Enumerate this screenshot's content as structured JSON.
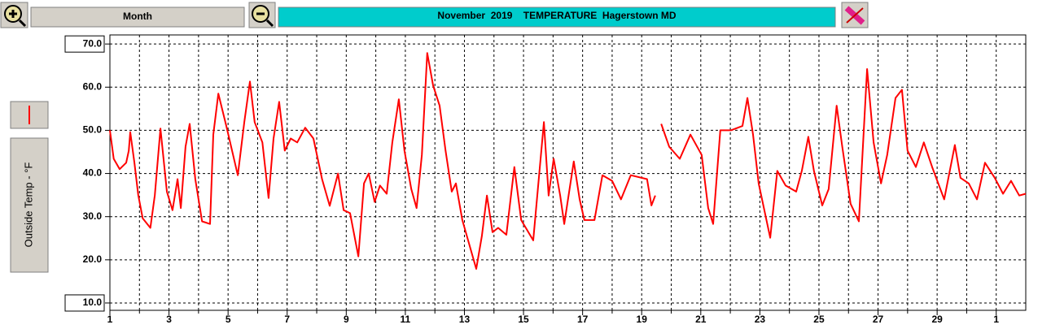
{
  "toolbar": {
    "period": "Month"
  },
  "chart_data": {
    "type": "line",
    "title": "November  2019    TEMPERATURE  Hagerstown MD",
    "x": [
      0,
      0.13,
      0.33,
      0.55,
      0.64,
      0.69,
      0.83,
      0.96,
      1.11,
      1.37,
      1.52,
      1.71,
      1.93,
      2.12,
      2.29,
      2.4,
      2.56,
      2.7,
      2.89,
      3.12,
      3.39,
      3.5,
      3.67,
      3.94,
      4.33,
      4.55,
      4.74,
      4.9,
      5.16,
      5.37,
      5.54,
      5.73,
      5.92,
      6.12,
      6.34,
      6.61,
      6.89,
      7.18,
      7.44,
      7.72,
      7.91,
      8.13,
      8.41,
      8.6,
      8.76,
      8.96,
      9.14,
      9.37,
      9.56,
      9.78,
      9.97,
      10.2,
      10.38,
      10.56,
      10.74,
      10.94,
      11.16,
      11.36,
      11.57,
      11.71,
      11.93,
      12.4,
      12.59,
      12.76,
      12.95,
      13.14,
      13.42,
      13.69,
      13.92,
      14.33,
      14.69,
      14.85,
      15.02,
      15.24,
      15.38,
      15.7,
      15.9,
      16.06,
      16.4,
      16.67,
      17.0,
      17.3,
      17.63,
      18.18,
      18.33,
      18.46,
      18.55,
      18.66,
      18.93,
      19.29,
      19.65,
      20.03,
      20.25,
      20.42,
      20.66,
      21.02,
      21.41,
      21.58,
      21.77,
      21.96,
      22.35,
      22.59,
      22.87,
      23.23,
      23.42,
      23.64,
      23.83,
      24.11,
      24.33,
      24.6,
      24.79,
      25.07,
      25.35,
      25.63,
      25.85,
      26.1,
      26.31,
      26.59,
      26.81,
      27.0,
      27.28,
      27.55,
      27.83,
      28.24,
      28.6,
      28.79,
      29.07,
      29.35,
      29.62,
      29.95,
      30.23,
      30.5,
      30.78,
      31
    ],
    "series": [
      {
        "name": "Outside Temp - °F",
        "color": "#ff0000",
        "values": [
          50,
          43.4,
          41,
          42.5,
          45.3,
          49.6,
          42.5,
          35,
          29.6,
          27.4,
          35,
          50.4,
          35.8,
          31.5,
          38.7,
          32,
          46.2,
          51.5,
          38.7,
          28.9,
          28.3,
          49,
          58.5,
          51,
          39.6,
          51.9,
          61.3,
          51.9,
          47.2,
          34.3,
          48.1,
          56.6,
          45.3,
          48.1,
          47.2,
          50.6,
          48.1,
          38.7,
          32.5,
          40,
          31.5,
          30.8,
          20.8,
          37.7,
          40,
          33.4,
          37.2,
          35.3,
          47.2,
          57.2,
          45.3,
          36.4,
          32,
          44.3,
          67.9,
          60.4,
          55.7,
          45.3,
          35.8,
          37.7,
          29.2,
          17.9,
          25.5,
          34.9,
          26.4,
          27.4,
          25.8,
          41.5,
          29.2,
          24.5,
          51.9,
          34.9,
          43.4,
          34.9,
          28.3,
          42.8,
          34,
          29.2,
          29.2,
          39.6,
          38.3,
          34,
          39.6,
          38.7,
          32.6,
          34.9,
          null,
          51.5,
          46.2,
          43.4,
          49,
          44.3,
          32,
          28.3,
          50,
          50,
          51,
          57.5,
          49,
          37.7,
          25.1,
          40.6,
          37.2,
          35.8,
          40.6,
          48.5,
          40.6,
          32.6,
          36.4,
          55.7,
          46.2,
          33,
          28.9,
          64.2,
          47.2,
          37.7,
          44.3,
          57.5,
          59.4,
          45.3,
          41.5,
          47.2,
          41.5,
          34,
          46.6,
          39,
          37.7,
          34,
          42.5,
          39,
          35.3,
          38.3,
          34.9,
          35.3
        ]
      }
    ],
    "xlim": [
      0,
      31
    ],
    "xticks": [
      {
        "value": 0,
        "label": "1"
      },
      {
        "value": 2,
        "label": "3"
      },
      {
        "value": 4,
        "label": "5"
      },
      {
        "value": 6,
        "label": "7"
      },
      {
        "value": 8,
        "label": "9"
      },
      {
        "value": 10,
        "label": "11"
      },
      {
        "value": 12,
        "label": "13"
      },
      {
        "value": 14,
        "label": "15"
      },
      {
        "value": 16,
        "label": "17"
      },
      {
        "value": 18,
        "label": "19"
      },
      {
        "value": 20,
        "label": "21"
      },
      {
        "value": 22,
        "label": "23"
      },
      {
        "value": 24,
        "label": "25"
      },
      {
        "value": 26,
        "label": "27"
      },
      {
        "value": 28,
        "label": "29"
      },
      {
        "value": 30,
        "label": "1"
      }
    ],
    "x_minor_ticks": [
      1,
      3,
      5,
      7,
      9,
      11,
      13,
      15,
      17,
      19,
      21,
      23,
      25,
      27,
      29
    ],
    "ylim": [
      8.3,
      72.1
    ],
    "yticks": [
      {
        "value": 70,
        "label": "70.0"
      },
      {
        "value": 60,
        "label": "60.0"
      },
      {
        "value": 50,
        "label": "50.0"
      },
      {
        "value": 40,
        "label": "40.0"
      },
      {
        "value": 30,
        "label": "30.0"
      },
      {
        "value": 20,
        "label": "20.0"
      },
      {
        "value": 10,
        "label": "10.0"
      }
    ],
    "grid": true
  }
}
